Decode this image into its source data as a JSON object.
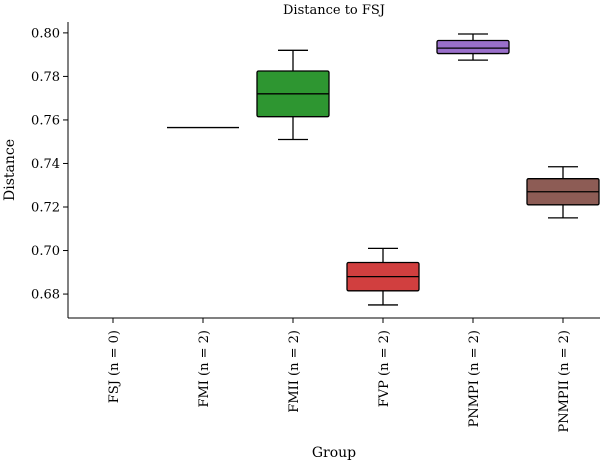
{
  "chart_data": {
    "type": "box",
    "title": "Distance to FSJ",
    "xlabel": "Group",
    "ylabel": "Distance",
    "ylim": [
      0.669,
      0.805
    ],
    "yticks": [
      "0.68",
      "0.70",
      "0.72",
      "0.74",
      "0.76",
      "0.78",
      "0.80"
    ],
    "grid": false,
    "categories": [
      "FSJ (n = 0)",
      "FMI (n = 2)",
      "FMII (n = 2)",
      "FVP (n = 2)",
      "PNMPI (n = 2)",
      "PNMPII (n = 2)"
    ],
    "boxes": [
      {
        "category": "FSJ (n = 0)",
        "color": null
      },
      {
        "category": "FMI (n = 2)",
        "color": "#000000",
        "min": 0.7565,
        "q1": 0.7565,
        "median": 0.7565,
        "q3": 0.7565,
        "max": 0.7565
      },
      {
        "category": "FMII (n = 2)",
        "color": "#2e9631",
        "min": 0.751,
        "q1": 0.7615,
        "median": 0.772,
        "q3": 0.7825,
        "max": 0.792
      },
      {
        "category": "FVP (n = 2)",
        "color": "#d13f3f",
        "min": 0.675,
        "q1": 0.6815,
        "median": 0.688,
        "q3": 0.6945,
        "max": 0.701
      },
      {
        "category": "PNMPI (n = 2)",
        "color": "#9a6fca",
        "min": 0.7875,
        "q1": 0.7905,
        "median": 0.793,
        "q3": 0.7965,
        "max": 0.7995
      },
      {
        "category": "PNMPII (n = 2)",
        "color": "#8d5c55",
        "min": 0.715,
        "q1": 0.721,
        "median": 0.727,
        "q3": 0.733,
        "max": 0.7385
      }
    ]
  }
}
